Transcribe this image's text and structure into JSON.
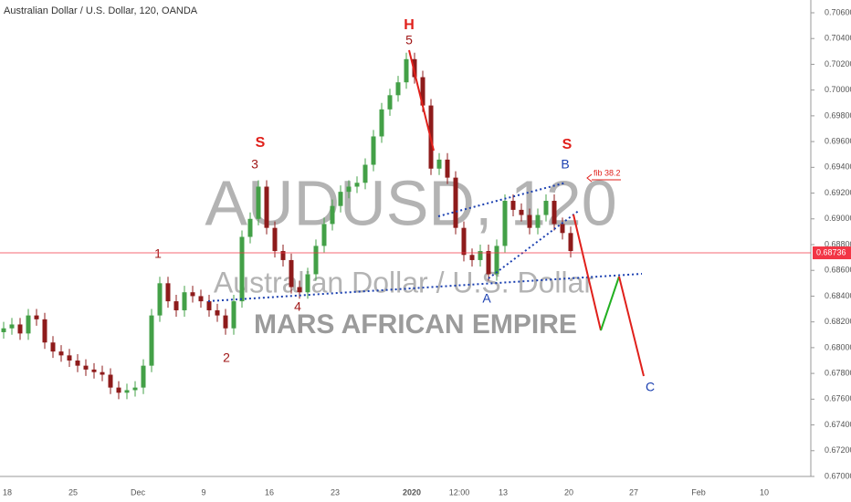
{
  "chart_data": {
    "type": "candlestick",
    "title": "Australian Dollar / U.S. Dollar, 120, OANDA",
    "watermark": [
      "AUDUSD, 120",
      "Australian Dollar / U.S. Dollar",
      "MARS AFRICAN EMPIRE"
    ],
    "up_color": "#43a047",
    "down_color": "#8e1b1b",
    "open": [
      0.6812,
      0.6815,
      0.6818,
      0.6811,
      0.6825,
      0.6822,
      0.6804,
      0.6797,
      0.6794,
      0.679,
      0.6786,
      0.6783,
      0.6781,
      0.6779,
      0.6769,
      0.6765,
      0.6767,
      0.6769,
      0.6786,
      0.6825,
      0.685,
      0.6836,
      0.6829,
      0.6843,
      0.684,
      0.6836,
      0.6829,
      0.6825,
      0.6815,
      0.6836,
      0.6886,
      0.69,
      0.6925,
      0.6893,
      0.6875,
      0.6868,
      0.6847,
      0.6843,
      0.6857,
      0.6879,
      0.6896,
      0.691,
      0.6921,
      0.6925,
      0.6928,
      0.6942,
      0.6964,
      0.6985,
      0.6996,
      0.7006,
      0.7024,
      0.701,
      0.6988,
      0.6939,
      0.6946,
      0.6932,
      0.6893,
      0.6872,
      0.6868,
      0.6875,
      0.6857,
      0.6879,
      0.6914,
      0.6907,
      0.6903,
      0.6893,
      0.6903,
      0.6914,
      0.6896,
      0.6889
    ],
    "high": [
      0.682,
      0.6823,
      0.6823,
      0.683,
      0.683,
      0.6827,
      0.6809,
      0.6802,
      0.6799,
      0.6795,
      0.6791,
      0.6788,
      0.6786,
      0.6784,
      0.6774,
      0.6772,
      0.6774,
      0.6791,
      0.683,
      0.6855,
      0.6855,
      0.6841,
      0.6848,
      0.6848,
      0.6845,
      0.6841,
      0.6834,
      0.683,
      0.6841,
      0.6891,
      0.6905,
      0.693,
      0.693,
      0.6898,
      0.688,
      0.6873,
      0.6852,
      0.6862,
      0.6884,
      0.6901,
      0.6915,
      0.6926,
      0.693,
      0.6933,
      0.6947,
      0.6969,
      0.699,
      0.7001,
      0.7011,
      0.7029,
      0.7029,
      0.7015,
      0.6993,
      0.6951,
      0.6951,
      0.6937,
      0.6898,
      0.6877,
      0.688,
      0.688,
      0.6884,
      0.6919,
      0.6919,
      0.6912,
      0.6908,
      0.6908,
      0.6919,
      0.6919,
      0.6901,
      0.6894
    ],
    "low": [
      0.6807,
      0.681,
      0.6806,
      0.6806,
      0.6817,
      0.6799,
      0.6792,
      0.6789,
      0.6785,
      0.6781,
      0.6778,
      0.6776,
      0.6774,
      0.6764,
      0.676,
      0.676,
      0.6762,
      0.6764,
      0.6781,
      0.682,
      0.6831,
      0.6824,
      0.6824,
      0.6835,
      0.6831,
      0.6824,
      0.682,
      0.681,
      0.681,
      0.6831,
      0.6881,
      0.6895,
      0.6888,
      0.687,
      0.6863,
      0.6842,
      0.6838,
      0.6838,
      0.6852,
      0.6874,
      0.6891,
      0.6905,
      0.6916,
      0.692,
      0.6923,
      0.6937,
      0.6959,
      0.698,
      0.6991,
      0.7001,
      0.7005,
      0.6983,
      0.6934,
      0.6934,
      0.6927,
      0.6888,
      0.6867,
      0.6863,
      0.6863,
      0.6852,
      0.6852,
      0.6874,
      0.6902,
      0.6898,
      0.6888,
      0.6888,
      0.6898,
      0.6891,
      0.6884,
      0.687
    ],
    "close": [
      0.6815,
      0.6818,
      0.6811,
      0.6825,
      0.6822,
      0.6804,
      0.6797,
      0.6794,
      0.679,
      0.6786,
      0.6783,
      0.6781,
      0.6779,
      0.6769,
      0.6765,
      0.6767,
      0.6769,
      0.6786,
      0.6825,
      0.685,
      0.6836,
      0.6829,
      0.6843,
      0.684,
      0.6836,
      0.6829,
      0.6825,
      0.6815,
      0.6836,
      0.6886,
      0.69,
      0.6925,
      0.6893,
      0.6875,
      0.6868,
      0.6847,
      0.6843,
      0.6857,
      0.6879,
      0.6896,
      0.691,
      0.6921,
      0.6925,
      0.6928,
      0.6942,
      0.6964,
      0.6985,
      0.6996,
      0.7006,
      0.7024,
      0.701,
      0.6988,
      0.6939,
      0.6946,
      0.6932,
      0.6893,
      0.6872,
      0.6868,
      0.6875,
      0.6857,
      0.6879,
      0.6914,
      0.6907,
      0.6903,
      0.6893,
      0.6903,
      0.6914,
      0.6896,
      0.6889,
      0.6875
    ],
    "last_price": 0.68736,
    "last_price_color": "#f23645",
    "ylim": [
      0.67,
      0.706
    ],
    "yticks": [
      {
        "value": 0.67,
        "label": "0.67000"
      },
      {
        "value": 0.672,
        "label": "0.67200"
      },
      {
        "value": 0.674,
        "label": "0.67400"
      },
      {
        "value": 0.676,
        "label": "0.67600"
      },
      {
        "value": 0.678,
        "label": "0.67800"
      },
      {
        "value": 0.68,
        "label": "0.68000"
      },
      {
        "value": 0.682,
        "label": "0.68200"
      },
      {
        "value": 0.684,
        "label": "0.68400"
      },
      {
        "value": 0.686,
        "label": "0.68600"
      },
      {
        "value": 0.688,
        "label": "0.68800"
      },
      {
        "value": 0.69,
        "label": "0.69000"
      },
      {
        "value": 0.692,
        "label": "0.69200"
      },
      {
        "value": 0.694,
        "label": "0.69400"
      },
      {
        "value": 0.696,
        "label": "0.69600"
      },
      {
        "value": 0.698,
        "label": "0.69800"
      },
      {
        "value": 0.7,
        "label": "0.70000"
      },
      {
        "value": 0.702,
        "label": "0.70200"
      },
      {
        "value": 0.704,
        "label": "0.70400"
      },
      {
        "value": 0.706,
        "label": "0.70600"
      }
    ],
    "x_labels": [
      "18",
      "25",
      "Dec",
      "9",
      "16",
      "23",
      "2020",
      "12:00",
      "13",
      "20",
      "27",
      "Feb",
      "10"
    ],
    "annotations": [
      "1",
      "2",
      "3",
      "4",
      "5",
      "H",
      "S",
      "S",
      "A",
      "B",
      "C",
      "fib 38.2"
    ]
  }
}
